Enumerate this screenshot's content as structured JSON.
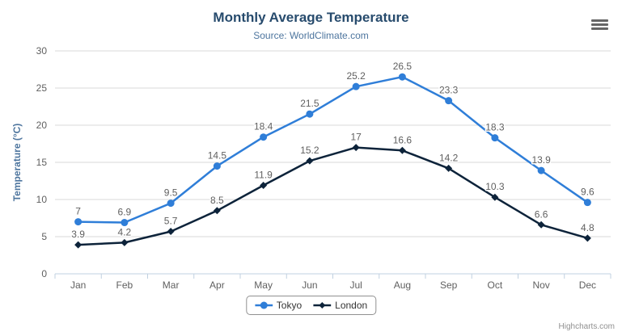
{
  "chart_data": {
    "type": "line",
    "title": "Monthly Average Temperature",
    "subtitle": "Source: WorldClimate.com",
    "xlabel": "",
    "ylabel": "Temperature (°C)",
    "ylim": [
      0,
      30
    ],
    "ytick_interval": 5,
    "grid": true,
    "legend_position": "bottom",
    "data_labels": true,
    "categories": [
      "Jan",
      "Feb",
      "Mar",
      "Apr",
      "May",
      "Jun",
      "Jul",
      "Aug",
      "Sep",
      "Oct",
      "Nov",
      "Dec"
    ],
    "series": [
      {
        "name": "Tokyo",
        "color": "#2f7ed8",
        "marker": "circle",
        "values": [
          7,
          6.9,
          9.5,
          14.5,
          18.4,
          21.5,
          25.2,
          26.5,
          23.3,
          18.3,
          13.9,
          9.6
        ]
      },
      {
        "name": "London",
        "color": "#0d233a",
        "marker": "diamond",
        "values": [
          3.9,
          4.2,
          5.7,
          8.5,
          11.9,
          15.2,
          17,
          16.6,
          14.2,
          10.3,
          6.6,
          4.8
        ]
      }
    ]
  },
  "credits": {
    "text": "Highcharts.com"
  },
  "menu": {
    "icon": "hamburger-icon"
  },
  "colors": {
    "title": "#274b6d",
    "subtitle": "#4d759e",
    "axis_title": "#4d759e",
    "axis_label": "#606060",
    "data_label": "#606060",
    "gridline": "#d8d8d8",
    "axis_line": "#c0d0e0",
    "legend_border": "#909090",
    "legend_text": "#333333",
    "credits": "#909090",
    "menu_icon": "#666666"
  }
}
